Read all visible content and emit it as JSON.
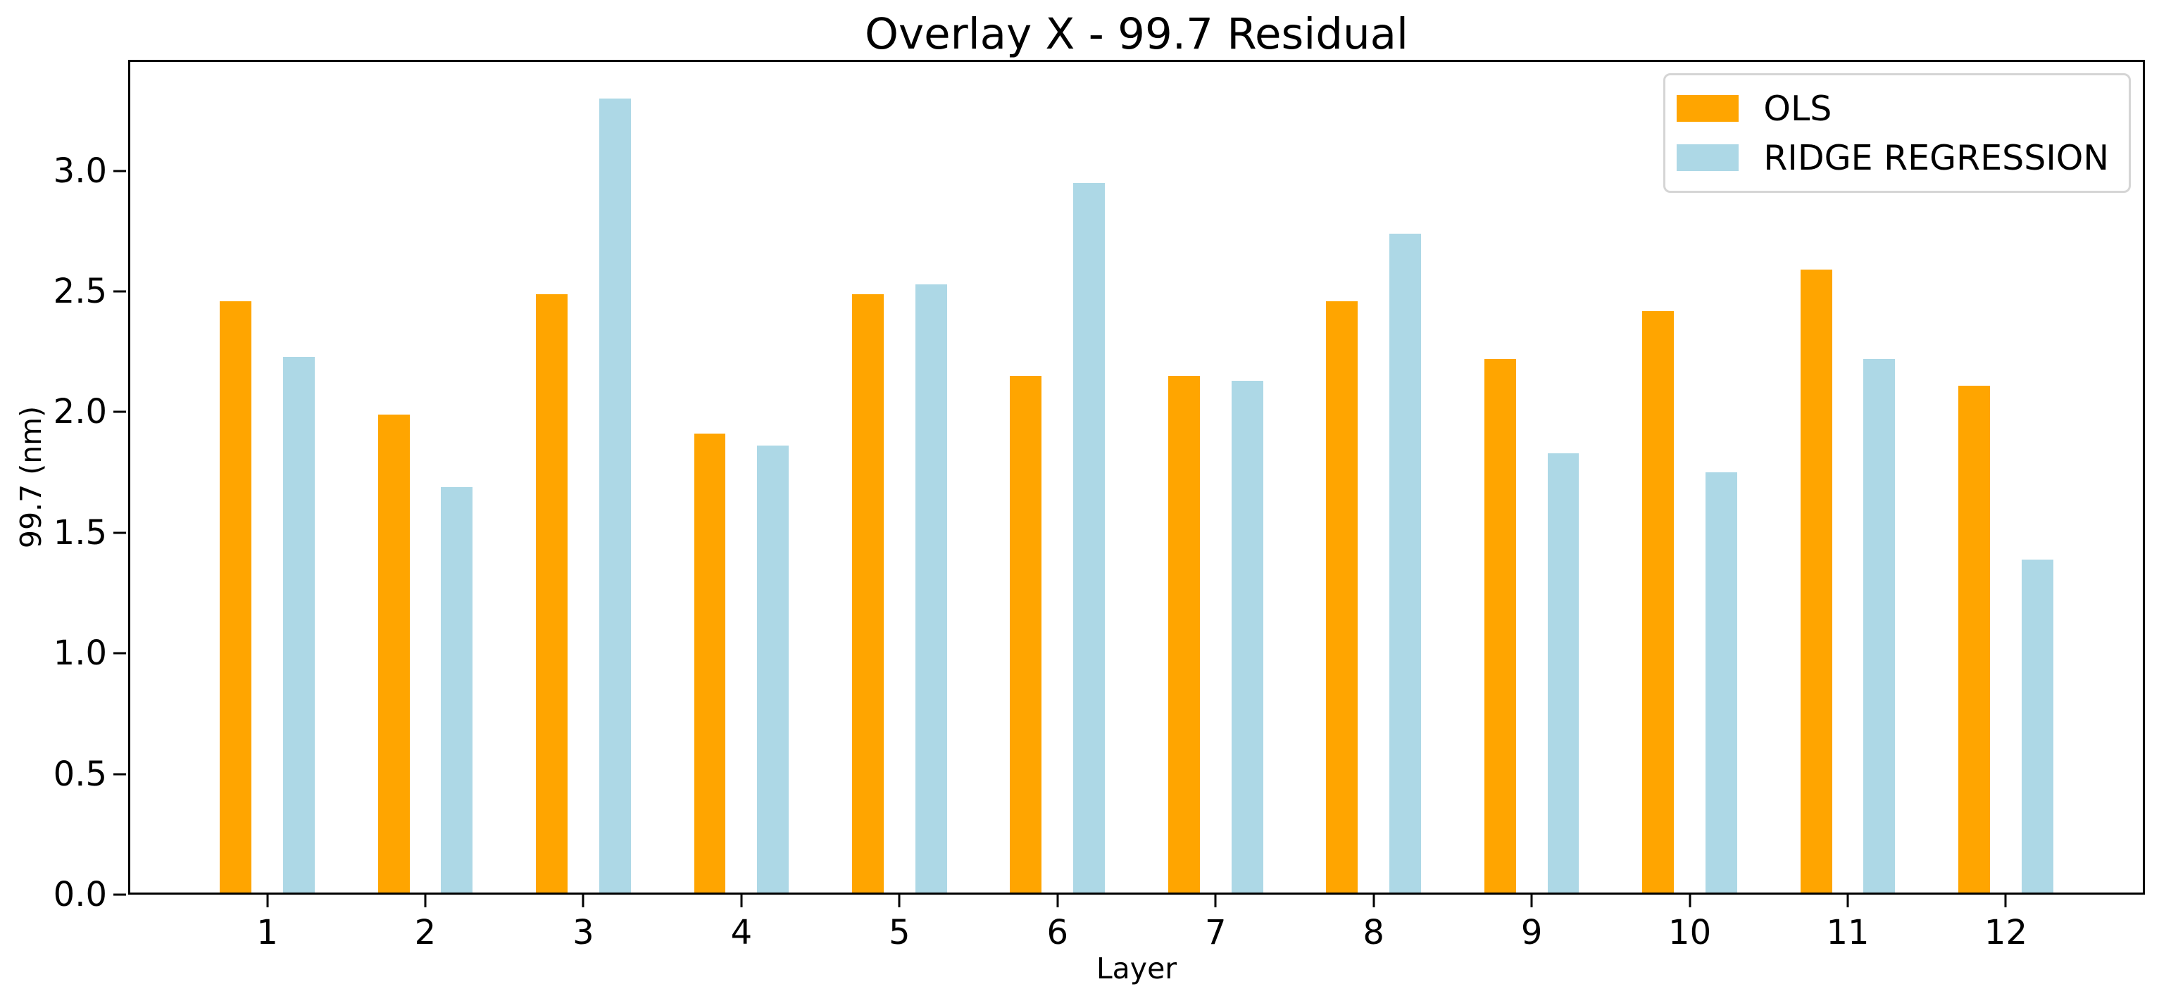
{
  "chart_data": {
    "type": "bar",
    "title": "Overlay X - 99.7 Residual",
    "xlabel": "Layer",
    "ylabel": "99.7 (nm)",
    "categories": [
      1,
      2,
      3,
      4,
      5,
      6,
      7,
      8,
      9,
      10,
      11,
      12
    ],
    "series": [
      {
        "name": "OLS",
        "color": "#FFA500",
        "values": [
          2.46,
          1.99,
          2.49,
          1.91,
          2.49,
          2.15,
          2.15,
          2.46,
          2.22,
          2.42,
          2.59,
          2.11
        ]
      },
      {
        "name": "RIDGE REGRESSION",
        "color": "#ADD8E6",
        "values": [
          2.23,
          1.69,
          3.3,
          1.86,
          2.53,
          2.95,
          2.13,
          2.74,
          1.83,
          1.75,
          2.22,
          1.39
        ]
      }
    ],
    "xlim": [
      0.12,
      12.88
    ],
    "ylim": [
      0,
      3.46
    ],
    "yticks": [
      0.0,
      0.5,
      1.0,
      1.5,
      2.0,
      2.5,
      3.0
    ],
    "ytick_labels": [
      "0.0",
      "0.5",
      "1.0",
      "1.5",
      "2.0",
      "2.5",
      "3.0"
    ],
    "xtick_labels": [
      "1",
      "2",
      "3",
      "4",
      "5",
      "6",
      "7",
      "8",
      "9",
      "10",
      "11",
      "12"
    ],
    "bar_width_units": 0.2,
    "bar_offset_units": 0.2,
    "grid": false,
    "legend_position": "upper right",
    "axis_color": "#000000",
    "background_color": "#ffffff"
  }
}
